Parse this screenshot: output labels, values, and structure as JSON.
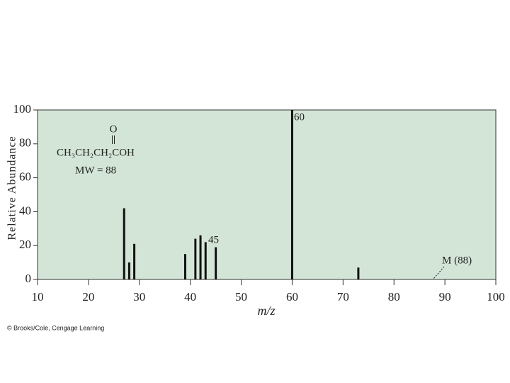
{
  "chart_data": {
    "type": "bar",
    "x_label": "m/z",
    "y_label": "Relative Abundance",
    "x": [
      27,
      28,
      29,
      39,
      41,
      42,
      43,
      45,
      60,
      73
    ],
    "series": [
      {
        "color": "#111111",
        "values": [
          42,
          10,
          21,
          15,
          24,
          26,
          22,
          19,
          100,
          7
        ]
      }
    ],
    "xlim": [
      10,
      100
    ],
    "xticks": [
      10,
      20,
      30,
      40,
      50,
      60,
      70,
      80,
      90,
      100
    ],
    "ylim": [
      0,
      100
    ],
    "yticks": [
      0,
      20,
      40,
      60,
      80,
      100
    ],
    "background": "#d3e5d7",
    "annotations": [
      "60",
      "45",
      "M (88)"
    ],
    "structure": {
      "carbonyl_o": "O",
      "formula": "CH₃CH₂CH₂COH",
      "mw": "MW = 88"
    },
    "credit": "© Brooks/Cole, Cengage Learning"
  }
}
